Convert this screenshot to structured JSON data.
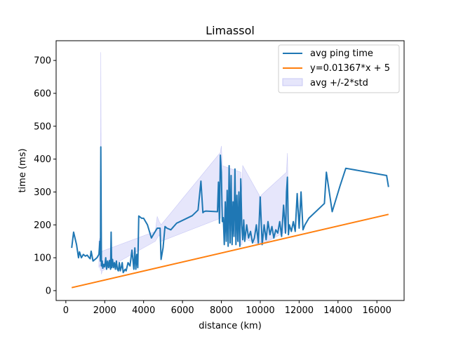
{
  "chart_data": {
    "type": "line",
    "title": "Limassol",
    "xlabel": "distance (km)",
    "ylabel": "time (ms)",
    "xlim": [
      -500,
      17400
    ],
    "ylim": [
      -30,
      760
    ],
    "xticks": [
      0,
      2000,
      4000,
      6000,
      8000,
      10000,
      12000,
      14000,
      16000
    ],
    "yticks": [
      0,
      100,
      200,
      300,
      400,
      500,
      600,
      700
    ],
    "grid": false,
    "legend_position": "top-right",
    "colors": {
      "avg": "#1f77b4",
      "fit": "#ff7f0e",
      "band_fill": "#e6e6fb",
      "band_edge": "#c8c8f5"
    },
    "series": [
      {
        "name": "avg ping time",
        "kind": "line",
        "x": [
          300,
          400,
          550,
          650,
          700,
          800,
          900,
          1000,
          1100,
          1200,
          1250,
          1300,
          1400,
          1600,
          1700,
          1750,
          1780,
          1800,
          1830,
          1870,
          1900,
          1950,
          2000,
          2050,
          2100,
          2150,
          2200,
          2250,
          2300,
          2330,
          2360,
          2400,
          2450,
          2500,
          2550,
          2600,
          2650,
          2700,
          2750,
          2800,
          2850,
          2900,
          2950,
          3000,
          3050,
          3100,
          3200,
          3300,
          3400,
          3500,
          3550,
          3600,
          3650,
          3700,
          3750,
          3900,
          4000,
          4200,
          4400,
          4500,
          4700,
          4850,
          4900,
          5000,
          5100,
          5200,
          5400,
          5700,
          6500,
          6800,
          6950,
          7050,
          7100,
          7200,
          7800,
          7850,
          7900,
          7950,
          8000,
          8050,
          8100,
          8150,
          8200,
          8250,
          8300,
          8350,
          8400,
          8450,
          8500,
          8550,
          8600,
          8650,
          8700,
          8750,
          8800,
          8850,
          8900,
          8950,
          9000,
          9050,
          9100,
          9150,
          9200,
          9300,
          9400,
          9500,
          9600,
          9700,
          9800,
          9900,
          10000,
          10100,
          10200,
          10300,
          10400,
          10500,
          10600,
          10700,
          10800,
          10900,
          11000,
          11100,
          11200,
          11300,
          11350,
          11400,
          11450,
          11500,
          11600,
          11700,
          11800,
          11900,
          12000,
          12100,
          12200,
          12300,
          12500,
          13300,
          13400,
          13700,
          14100,
          14400,
          16500,
          16600
        ],
        "y": [
          130,
          178,
          140,
          100,
          118,
          100,
          110,
          105,
          108,
          100,
          97,
          120,
          90,
          100,
          110,
          150,
          90,
          437,
          75,
          90,
          68,
          80,
          72,
          100,
          65,
          90,
          70,
          92,
          65,
          178,
          70,
          95,
          70,
          85,
          65,
          90,
          65,
          60,
          85,
          60,
          70,
          85,
          55,
          60,
          65,
          60,
          85,
          75,
          123,
          65,
          130,
          65,
          110,
          70,
          227,
          220,
          220,
          200,
          160,
          170,
          190,
          190,
          95,
          130,
          195,
          190,
          185,
          205,
          228,
          245,
          333,
          237,
          240,
          242,
          240,
          330,
          205,
          412,
          360,
          210,
          222,
          140,
          270,
          150,
          305,
          135,
          380,
          145,
          350,
          140,
          270,
          165,
          370,
          140,
          290,
          150,
          300,
          135,
          340,
          200,
          155,
          215,
          150,
          200,
          160,
          180,
          145,
          160,
          200,
          145,
          285,
          140,
          200,
          155,
          210,
          170,
          195,
          160,
          185,
          175,
          210,
          165,
          260,
          175,
          300,
          345,
          170,
          200,
          180,
          210,
          180,
          295,
          190,
          300,
          185,
          200,
          220,
          265,
          360,
          240,
          318,
          372,
          350,
          315
        ]
      },
      {
        "name": "y=0.01367*x + 5",
        "kind": "line",
        "x": [
          300,
          16600
        ],
        "y": [
          9.1,
          231.9
        ]
      },
      {
        "name": "avg +/-2*std",
        "kind": "band",
        "x": [
          1700,
          1750,
          1780,
          1800,
          1830,
          1870,
          4600,
          4700,
          4800,
          4900,
          7950,
          8000,
          8050,
          9000,
          9050,
          9100,
          9950,
          10000,
          10050,
          11350,
          11400,
          11450
        ],
        "upper": [
          150,
          160,
          120,
          725,
          110,
          120,
          180,
          225,
          210,
          200,
          420,
          440,
          380,
          360,
          300,
          380,
          290,
          240,
          290,
          360,
          418,
          210
        ],
        "lower": [
          70,
          80,
          60,
          150,
          50,
          60,
          150,
          160,
          170,
          150,
          220,
          270,
          220,
          140,
          140,
          160,
          140,
          150,
          140,
          180,
          270,
          170
        ]
      }
    ]
  }
}
